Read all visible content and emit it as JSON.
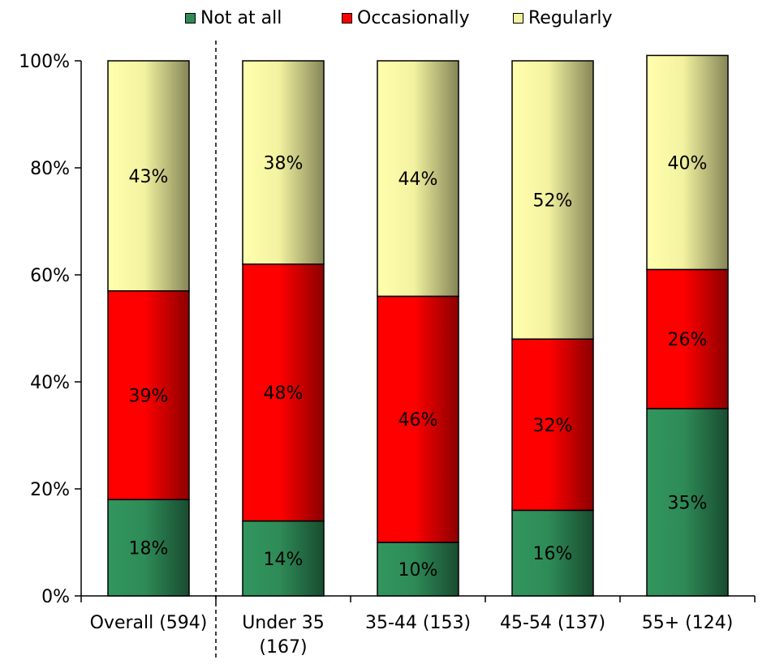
{
  "chart_data": {
    "type": "bar",
    "stacked": true,
    "categories": [
      "Overall (594)",
      "Under 35\n(167)",
      "35-44 (153)",
      "45-54 (137)",
      "55+ (124)"
    ],
    "series": [
      {
        "name": "Not at all",
        "color": "#2e8b57",
        "values": [
          18,
          14,
          10,
          16,
          35
        ]
      },
      {
        "name": "Occasionally",
        "color": "#ff0000",
        "values": [
          39,
          48,
          46,
          32,
          26
        ]
      },
      {
        "name": "Regularly",
        "color": "#f2f2a0",
        "values": [
          43,
          38,
          44,
          52,
          40
        ]
      }
    ],
    "ylim": [
      0,
      100
    ],
    "yticks": [
      "0%",
      "20%",
      "40%",
      "60%",
      "80%",
      "100%"
    ],
    "data_labels": [
      [
        "18%",
        "14%",
        "10%",
        "16%",
        "35%"
      ],
      [
        "39%",
        "48%",
        "46%",
        "32%",
        "26%"
      ],
      [
        "43%",
        "38%",
        "44%",
        "52%",
        "40%"
      ]
    ],
    "grid": false,
    "legend_position": "top",
    "separator_after_category": 0
  }
}
